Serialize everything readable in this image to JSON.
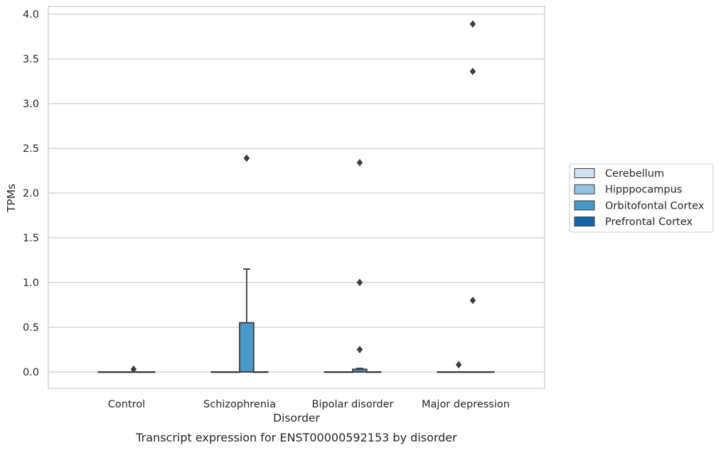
{
  "chart_data": {
    "type": "box",
    "xlabel": "Disorder",
    "ylabel": "TPMs",
    "caption": "Transcript expression for ENST00000592153 by disorder",
    "categories": [
      "Control",
      "Schizophrenia",
      "Bipolar disorder",
      "Major depression"
    ],
    "ylim": [
      -0.19,
      4.08
    ],
    "yticks": [
      0.0,
      0.5,
      1.0,
      1.5,
      2.0,
      2.5,
      3.0,
      3.5,
      4.0
    ],
    "ytick_labels": [
      "0.0",
      "0.5",
      "1.0",
      "1.5",
      "2.0",
      "2.5",
      "3.0",
      "3.5",
      "4.0"
    ],
    "grid": "horizontal",
    "legend_position": "right",
    "series": [
      {
        "name": "Cerebellum",
        "color": "#d0e1f2",
        "boxes": [
          {
            "q1": 0,
            "median": 0,
            "q3": 0,
            "whislo": 0,
            "whishi": 0,
            "fliers": []
          },
          {
            "q1": 0,
            "median": 0,
            "q3": 0,
            "whislo": 0,
            "whishi": 0,
            "fliers": []
          },
          {
            "q1": 0,
            "median": 0,
            "q3": 0,
            "whislo": 0,
            "whishi": 0,
            "fliers": []
          },
          {
            "q1": 0,
            "median": 0,
            "q3": 0,
            "whislo": 0,
            "whishi": 0,
            "fliers": []
          }
        ]
      },
      {
        "name": "Hipppocampus",
        "color": "#94c4df",
        "boxes": [
          {
            "q1": 0,
            "median": 0,
            "q3": 0,
            "whislo": 0,
            "whishi": 0,
            "fliers": []
          },
          {
            "q1": 0,
            "median": 0,
            "q3": 0,
            "whislo": 0,
            "whishi": 0,
            "fliers": []
          },
          {
            "q1": 0,
            "median": 0,
            "q3": 0,
            "whislo": 0,
            "whishi": 0,
            "fliers": []
          },
          {
            "q1": 0,
            "median": 0,
            "q3": 0,
            "whislo": 0,
            "whishi": 0,
            "fliers": [
              0.08
            ]
          }
        ]
      },
      {
        "name": "Orbitofontal Cortex",
        "color": "#4a98c9",
        "boxes": [
          {
            "q1": 0,
            "median": 0,
            "q3": 0,
            "whislo": 0,
            "whishi": 0,
            "fliers": [
              0.03
            ]
          },
          {
            "q1": 0,
            "median": 0,
            "q3": 0.55,
            "whislo": 0,
            "whishi": 1.15,
            "fliers": [
              2.39
            ]
          },
          {
            "q1": 0,
            "median": 0,
            "q3": 0.03,
            "whislo": 0,
            "whishi": 0.04,
            "fliers": [
              0.25,
              1.0,
              2.34
            ]
          },
          {
            "q1": 0,
            "median": 0,
            "q3": 0,
            "whislo": 0,
            "whishi": 0,
            "fliers": [
              0.8,
              3.36,
              3.89
            ]
          }
        ]
      },
      {
        "name": "Prefrontal Cortex",
        "color": "#1764ab",
        "boxes": [
          {
            "q1": 0,
            "median": 0,
            "q3": 0,
            "whislo": 0,
            "whishi": 0,
            "fliers": []
          },
          {
            "q1": 0,
            "median": 0,
            "q3": 0,
            "whislo": 0,
            "whishi": 0,
            "fliers": []
          },
          {
            "q1": 0,
            "median": 0,
            "q3": 0,
            "whislo": 0,
            "whishi": 0,
            "fliers": []
          },
          {
            "q1": 0,
            "median": 0,
            "q3": 0,
            "whislo": 0,
            "whishi": 0,
            "fliers": []
          }
        ]
      }
    ]
  },
  "colors": {
    "grid": "#cccccc",
    "frame": "#cccccc",
    "box_edge": "#3d3d3d",
    "flier": "#3d3d3d"
  }
}
